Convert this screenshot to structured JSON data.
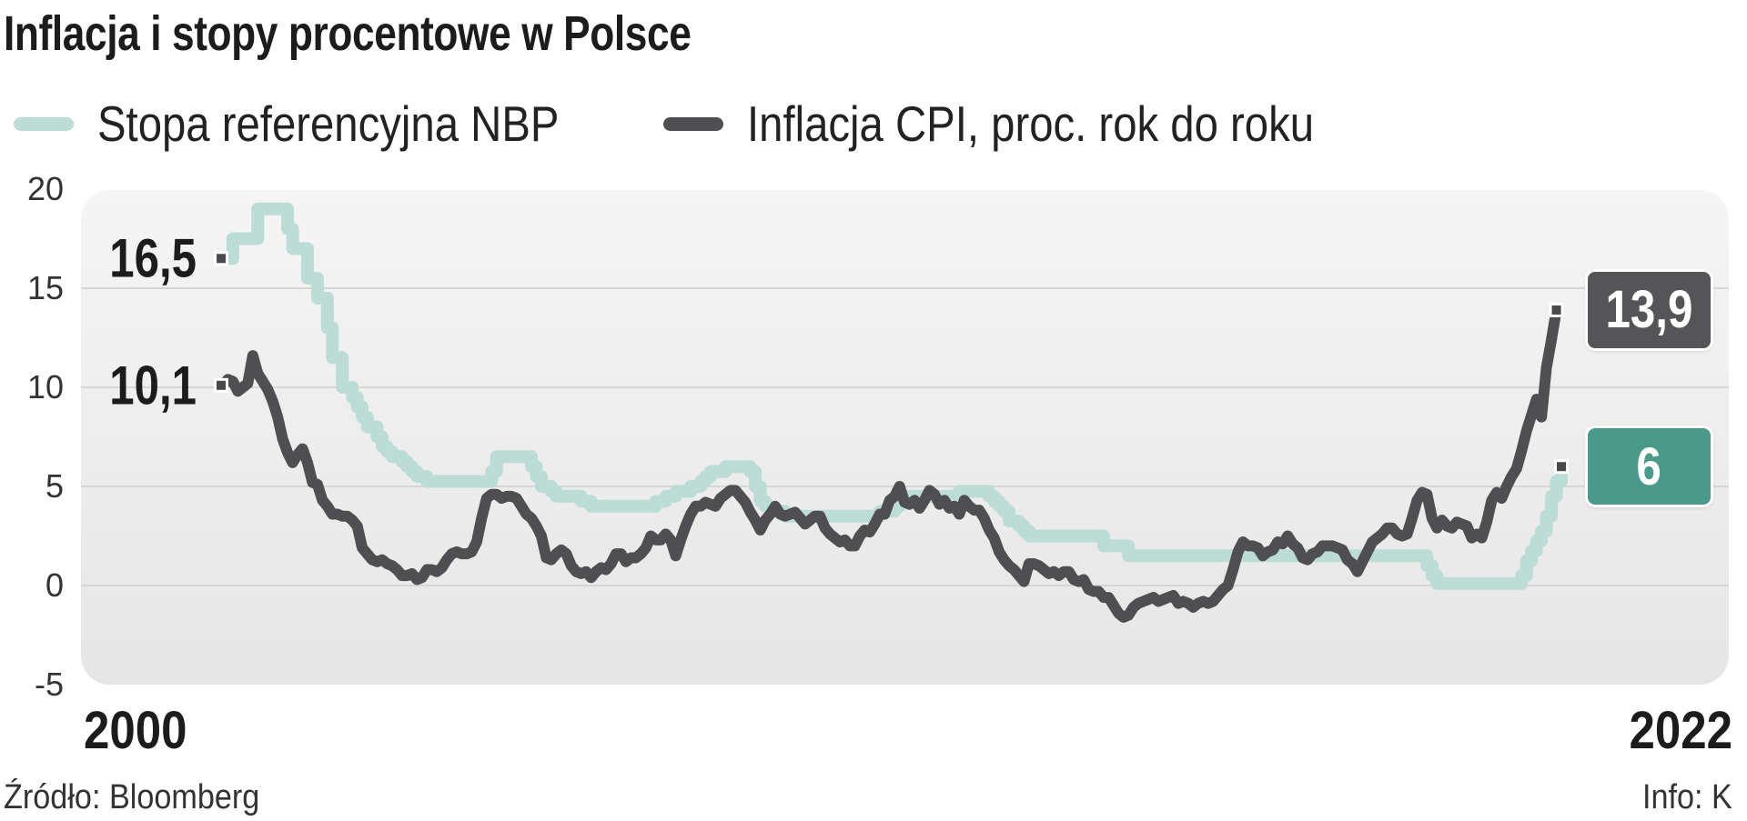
{
  "chart_data": {
    "type": "line",
    "title": "Inflacja i stopy procentowe w Polsce",
    "xlabel": "",
    "ylabel": "",
    "x_start_label": "2000",
    "x_end_label": "2022",
    "ylim": [
      -5,
      20
    ],
    "yticks": [
      "20",
      "15",
      "10",
      "5",
      "0",
      "-5"
    ],
    "ytick_values": [
      20,
      15,
      10,
      5,
      0,
      -5
    ],
    "grid": true,
    "legend_placement": "top-left",
    "source": "Źródło: Bloomberg",
    "credit": "Info: K",
    "series": [
      {
        "name": "Stopa referencyjna NBP",
        "color": "#bcdcd6",
        "start_label": "16,5",
        "end_label": "6",
        "end_badge_color": "#4a9a8c",
        "steps": [
          [
            "2000-01",
            16.5
          ],
          [
            "2000-03",
            17.5
          ],
          [
            "2000-08",
            19.0
          ],
          [
            "2001-02",
            18.0
          ],
          [
            "2001-03",
            17.0
          ],
          [
            "2001-06",
            15.5
          ],
          [
            "2001-08",
            14.5
          ],
          [
            "2001-10",
            13.0
          ],
          [
            "2001-11",
            11.5
          ],
          [
            "2002-01",
            10.0
          ],
          [
            "2002-03",
            9.5
          ],
          [
            "2002-04",
            9.0
          ],
          [
            "2002-05",
            8.5
          ],
          [
            "2002-06",
            8.0
          ],
          [
            "2002-08",
            7.5
          ],
          [
            "2002-09",
            7.0
          ],
          [
            "2002-10",
            6.75
          ],
          [
            "2002-11",
            6.5
          ],
          [
            "2003-01",
            6.25
          ],
          [
            "2003-02",
            6.0
          ],
          [
            "2003-03",
            5.75
          ],
          [
            "2003-04",
            5.5
          ],
          [
            "2003-06",
            5.25
          ],
          [
            "2004-07",
            5.75
          ],
          [
            "2004-08",
            6.5
          ],
          [
            "2005-03",
            6.0
          ],
          [
            "2005-04",
            5.5
          ],
          [
            "2005-05",
            5.0
          ],
          [
            "2005-07",
            4.75
          ],
          [
            "2005-08",
            4.5
          ],
          [
            "2006-01",
            4.25
          ],
          [
            "2006-03",
            4.0
          ],
          [
            "2007-04",
            4.25
          ],
          [
            "2007-06",
            4.5
          ],
          [
            "2007-08",
            4.75
          ],
          [
            "2007-11",
            5.0
          ],
          [
            "2008-01",
            5.25
          ],
          [
            "2008-02",
            5.5
          ],
          [
            "2008-03",
            5.75
          ],
          [
            "2008-06",
            6.0
          ],
          [
            "2008-11",
            5.75
          ],
          [
            "2008-12",
            5.0
          ],
          [
            "2009-01",
            4.25
          ],
          [
            "2009-02",
            4.0
          ],
          [
            "2009-03",
            3.75
          ],
          [
            "2009-06",
            3.5
          ],
          [
            "2011-01",
            3.75
          ],
          [
            "2011-04",
            4.0
          ],
          [
            "2011-05",
            4.25
          ],
          [
            "2011-06",
            4.5
          ],
          [
            "2012-05",
            4.75
          ],
          [
            "2012-11",
            4.5
          ],
          [
            "2012-12",
            4.25
          ],
          [
            "2013-01",
            4.0
          ],
          [
            "2013-02",
            3.75
          ],
          [
            "2013-03",
            3.25
          ],
          [
            "2013-05",
            3.0
          ],
          [
            "2013-06",
            2.75
          ],
          [
            "2013-07",
            2.5
          ],
          [
            "2014-10",
            2.0
          ],
          [
            "2015-03",
            1.5
          ],
          [
            "2020-03",
            1.0
          ],
          [
            "2020-04",
            0.5
          ],
          [
            "2020-05",
            0.1
          ],
          [
            "2021-10",
            0.5
          ],
          [
            "2021-11",
            1.25
          ],
          [
            "2021-12",
            1.75
          ],
          [
            "2022-01",
            2.25
          ],
          [
            "2022-02",
            2.75
          ],
          [
            "2022-03",
            3.5
          ],
          [
            "2022-04",
            4.5
          ],
          [
            "2022-05",
            5.25
          ],
          [
            "2022-06",
            6.0
          ]
        ]
      },
      {
        "name": "Inflacja CPI, proc. rok do roku",
        "color": "#4f4f52",
        "start_label": "10,1",
        "end_label": "13,9",
        "end_badge_color": "#555558",
        "start": "2000-01",
        "monthly": [
          10.1,
          10.4,
          10.3,
          9.8,
          10.0,
          10.2,
          11.6,
          10.7,
          10.3,
          9.9,
          9.3,
          8.5,
          7.4,
          6.7,
          6.2,
          6.6,
          6.9,
          6.2,
          5.2,
          5.1,
          4.3,
          4.0,
          3.6,
          3.6,
          3.5,
          3.5,
          3.3,
          3.0,
          1.9,
          1.6,
          1.3,
          1.2,
          1.3,
          1.1,
          1.0,
          0.8,
          0.5,
          0.5,
          0.6,
          0.3,
          0.4,
          0.8,
          0.8,
          0.7,
          0.9,
          1.3,
          1.6,
          1.7,
          1.6,
          1.6,
          1.7,
          2.2,
          3.4,
          4.4,
          4.6,
          4.6,
          4.4,
          4.5,
          4.5,
          4.4,
          4.0,
          3.6,
          3.4,
          3.0,
          2.5,
          1.4,
          1.3,
          1.6,
          1.8,
          1.6,
          1.0,
          0.7,
          0.6,
          0.7,
          0.4,
          0.7,
          0.9,
          0.8,
          1.1,
          1.6,
          1.6,
          1.2,
          1.4,
          1.4,
          1.6,
          1.9,
          2.5,
          2.3,
          2.3,
          2.6,
          2.3,
          1.5,
          2.3,
          3.0,
          3.6,
          4.0,
          4.0,
          4.2,
          4.1,
          4.0,
          4.4,
          4.6,
          4.8,
          4.8,
          4.5,
          4.2,
          3.7,
          3.3,
          2.8,
          3.3,
          3.6,
          4.0,
          3.6,
          3.5,
          3.6,
          3.7,
          3.4,
          3.1,
          3.3,
          3.5,
          3.5,
          2.9,
          2.6,
          2.4,
          2.2,
          2.3,
          2.0,
          2.0,
          2.5,
          2.8,
          2.7,
          3.1,
          3.6,
          3.6,
          4.3,
          4.5,
          5.0,
          4.2,
          4.1,
          4.3,
          3.9,
          4.3,
          4.8,
          4.6,
          4.1,
          4.3,
          3.9,
          4.0,
          3.6,
          4.3,
          4.0,
          3.8,
          3.8,
          3.4,
          2.8,
          2.4,
          1.7,
          1.3,
          1.0,
          0.8,
          0.5,
          0.2,
          1.1,
          1.1,
          1.0,
          0.8,
          0.6,
          0.7,
          0.5,
          0.7,
          0.7,
          0.3,
          0.2,
          0.3,
          -0.2,
          -0.3,
          -0.3,
          -0.6,
          -0.6,
          -1.0,
          -1.4,
          -1.6,
          -1.5,
          -1.1,
          -0.9,
          -0.8,
          -0.7,
          -0.6,
          -0.8,
          -0.7,
          -0.6,
          -0.5,
          -0.9,
          -0.8,
          -0.9,
          -1.1,
          -0.9,
          -0.8,
          -0.9,
          -0.8,
          -0.5,
          -0.2,
          0.0,
          0.8,
          1.7,
          2.2,
          2.0,
          2.0,
          1.9,
          1.5,
          1.7,
          1.8,
          2.2,
          2.1,
          2.5,
          2.1,
          1.9,
          1.4,
          1.3,
          1.6,
          1.7,
          2.0,
          2.0,
          2.0,
          1.9,
          1.8,
          1.3,
          1.1,
          0.7,
          1.2,
          1.7,
          2.2,
          2.4,
          2.6,
          2.9,
          2.9,
          2.6,
          2.5,
          2.6,
          3.4,
          4.3,
          4.7,
          4.6,
          3.4,
          2.9,
          3.3,
          3.0,
          2.9,
          3.2,
          3.1,
          3.0,
          2.4,
          2.6,
          2.4,
          3.2,
          4.3,
          4.7,
          4.4,
          5.0,
          5.5,
          5.9,
          6.8,
          7.8,
          8.6,
          9.4,
          8.5,
          11.0,
          12.4,
          13.9
        ]
      }
    ]
  }
}
